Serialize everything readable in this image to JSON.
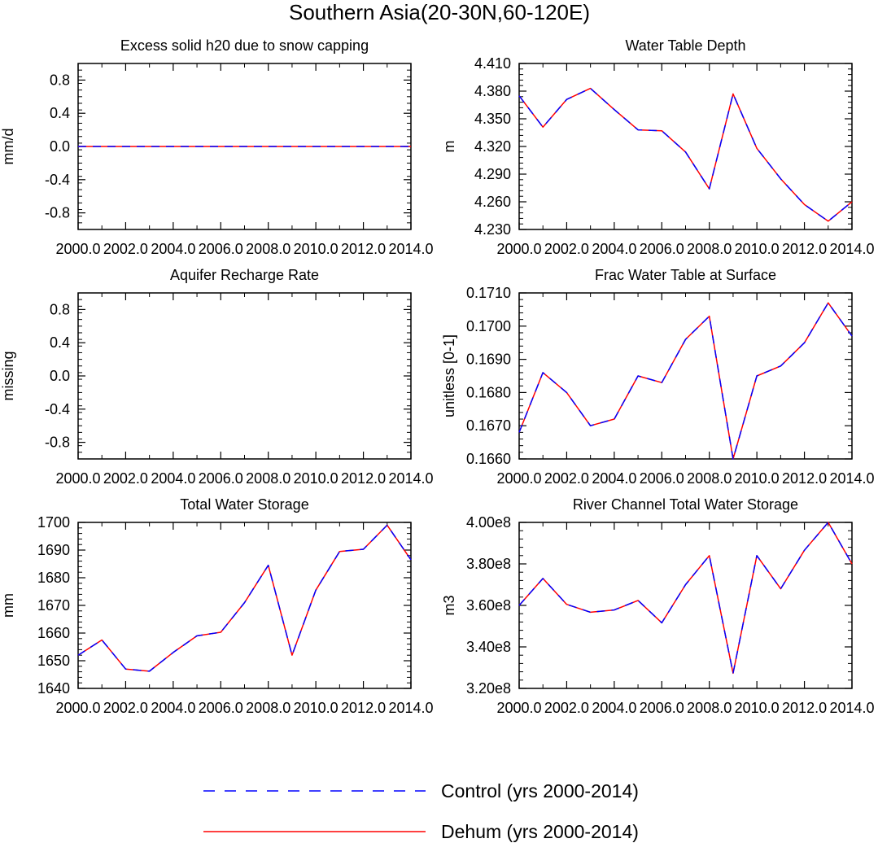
{
  "figure": {
    "title": "Southern Asia(20-30N,60-120E)"
  },
  "legend": {
    "placement": "bottom-center",
    "entries": [
      {
        "label": "Control (yrs 2000-2014)",
        "color": "#0000ff",
        "style": "dashed"
      },
      {
        "label": "Dehum (yrs 2000-2014)",
        "color": "#ff0000",
        "style": "solid"
      }
    ]
  },
  "chart_data": [
    {
      "type": "line",
      "title": "Excess solid h20 due to snow capping",
      "ylabel": "mm/d",
      "xlim": [
        2000,
        2014
      ],
      "ylim": [
        -1,
        1
      ],
      "xticks": [
        "2000.0",
        "2002.0",
        "2004.0",
        "2006.0",
        "2008.0",
        "2010.0",
        "2012.0",
        "2014.0"
      ],
      "yticks": [
        "-0.8",
        "-0.4",
        "0.0",
        "0.4",
        "0.8"
      ],
      "x": [
        2000,
        2001,
        2002,
        2003,
        2004,
        2005,
        2006,
        2007,
        2008,
        2009,
        2010,
        2011,
        2012,
        2013,
        2014
      ],
      "series": [
        {
          "name": "Control (yrs 2000-2014)",
          "color": "#0000ff",
          "style": "dashed",
          "values": [
            0,
            0,
            0,
            0,
            0,
            0,
            0,
            0,
            0,
            0,
            0,
            0,
            0,
            0,
            0
          ]
        },
        {
          "name": "Dehum (yrs 2000-2014)",
          "color": "#ff0000",
          "style": "solid",
          "values": [
            0,
            0,
            0,
            0,
            0,
            0,
            0,
            0,
            0,
            0,
            0,
            0,
            0,
            0,
            0
          ]
        }
      ]
    },
    {
      "type": "line",
      "title": "Water Table Depth",
      "ylabel": "m",
      "xlim": [
        2000,
        2014
      ],
      "ylim": [
        4.23,
        4.41
      ],
      "xticks": [
        "2000.0",
        "2002.0",
        "2004.0",
        "2006.0",
        "2008.0",
        "2010.0",
        "2012.0",
        "2014.0"
      ],
      "yticks": [
        "4.230",
        "4.260",
        "4.290",
        "4.320",
        "4.350",
        "4.380",
        "4.410"
      ],
      "x": [
        2000,
        2001,
        2002,
        2003,
        2004,
        2005,
        2006,
        2007,
        2008,
        2009,
        2010,
        2011,
        2012,
        2013,
        2014
      ],
      "series": [
        {
          "name": "Control (yrs 2000-2014)",
          "color": "#0000ff",
          "style": "dashed",
          "values": [
            4.375,
            4.341,
            4.371,
            4.383,
            4.36,
            4.338,
            4.337,
            4.314,
            4.274,
            4.377,
            4.318,
            4.285,
            4.257,
            4.239,
            4.26
          ]
        },
        {
          "name": "Dehum (yrs 2000-2014)",
          "color": "#ff0000",
          "style": "solid",
          "values": [
            4.375,
            4.341,
            4.371,
            4.383,
            4.36,
            4.338,
            4.337,
            4.314,
            4.274,
            4.377,
            4.318,
            4.285,
            4.257,
            4.239,
            4.26
          ]
        }
      ]
    },
    {
      "type": "line",
      "title": "Aquifer Recharge Rate",
      "ylabel": "missing",
      "xlim": [
        2000,
        2014
      ],
      "ylim": [
        -1,
        1
      ],
      "xticks": [
        "2000.0",
        "2002.0",
        "2004.0",
        "2006.0",
        "2008.0",
        "2010.0",
        "2012.0",
        "2014.0"
      ],
      "yticks": [
        "-0.8",
        "-0.4",
        "0.0",
        "0.4",
        "0.8"
      ],
      "x": [],
      "series": []
    },
    {
      "type": "line",
      "title": "Frac Water Table at Surface",
      "ylabel": "unitless [0-1]",
      "xlim": [
        2000,
        2014
      ],
      "ylim": [
        0.166,
        0.171
      ],
      "xticks": [
        "2000.0",
        "2002.0",
        "2004.0",
        "2006.0",
        "2008.0",
        "2010.0",
        "2012.0",
        "2014.0"
      ],
      "yticks": [
        "0.1660",
        "0.1670",
        "0.1680",
        "0.1690",
        "0.1700",
        "0.1710"
      ],
      "x": [
        2000,
        2001,
        2002,
        2003,
        2004,
        2005,
        2006,
        2007,
        2008,
        2009,
        2010,
        2011,
        2012,
        2013,
        2014
      ],
      "series": [
        {
          "name": "Control (yrs 2000-2014)",
          "color": "#0000ff",
          "style": "dashed",
          "values": [
            0.1668,
            0.1686,
            0.168,
            0.167,
            0.1672,
            0.1685,
            0.1683,
            0.1696,
            0.1703,
            0.166,
            0.1685,
            0.1688,
            0.1695,
            0.1707,
            0.1697
          ]
        },
        {
          "name": "Dehum (yrs 2000-2014)",
          "color": "#ff0000",
          "style": "solid",
          "values": [
            0.1668,
            0.1686,
            0.168,
            0.167,
            0.1672,
            0.1685,
            0.1683,
            0.1696,
            0.1703,
            0.166,
            0.1685,
            0.1688,
            0.1695,
            0.1707,
            0.1697
          ]
        }
      ]
    },
    {
      "type": "line",
      "title": "Total Water Storage",
      "ylabel": "mm",
      "xlim": [
        2000,
        2014
      ],
      "ylim": [
        1640,
        1700
      ],
      "xticks": [
        "2000.0",
        "2002.0",
        "2004.0",
        "2006.0",
        "2008.0",
        "2010.0",
        "2012.0",
        "2014.0"
      ],
      "yticks": [
        "1640",
        "1650",
        "1660",
        "1670",
        "1680",
        "1690",
        "1700"
      ],
      "x": [
        2000,
        2001,
        2002,
        2003,
        2004,
        2005,
        2006,
        2007,
        2008,
        2009,
        2010,
        2011,
        2012,
        2013,
        2014
      ],
      "series": [
        {
          "name": "Control (yrs 2000-2014)",
          "color": "#0000ff",
          "style": "dashed",
          "values": [
            1652,
            1657.5,
            1647,
            1646.2,
            1653,
            1659,
            1660.3,
            1671,
            1684.5,
            1652,
            1675.5,
            1689.5,
            1690.3,
            1699,
            1686.5
          ]
        },
        {
          "name": "Dehum (yrs 2000-2014)",
          "color": "#ff0000",
          "style": "solid",
          "values": [
            1652,
            1657.5,
            1647,
            1646.2,
            1653,
            1659,
            1660.3,
            1671,
            1684.5,
            1652,
            1675.5,
            1689.5,
            1690.3,
            1699,
            1686.5
          ]
        }
      ]
    },
    {
      "type": "line",
      "title": "River Channel Total Water Storage",
      "ylabel": "m3",
      "xlim": [
        2000,
        2014
      ],
      "ylim": [
        320000000,
        400000000
      ],
      "xticks": [
        "2000.0",
        "2002.0",
        "2004.0",
        "2006.0",
        "2008.0",
        "2010.0",
        "2012.0",
        "2014.0"
      ],
      "yticks": [
        "3.20e8",
        "3.40e8",
        "3.60e8",
        "3.80e8",
        "4.00e8"
      ],
      "x": [
        2000,
        2001,
        2002,
        2003,
        2004,
        2005,
        2006,
        2007,
        2008,
        2009,
        2010,
        2011,
        2012,
        2013,
        2014
      ],
      "series": [
        {
          "name": "Control (yrs 2000-2014)",
          "color": "#0000ff",
          "style": "dashed",
          "values": [
            360000000,
            373000000,
            360500000,
            356700000,
            357800000,
            362400000,
            351600000,
            370000000,
            384000000,
            327300000,
            384000000,
            368000000,
            386600000,
            400000000,
            380000000
          ]
        },
        {
          "name": "Dehum (yrs 2000-2014)",
          "color": "#ff0000",
          "style": "solid",
          "values": [
            360000000,
            373000000,
            360500000,
            356700000,
            357800000,
            362400000,
            351600000,
            370000000,
            384000000,
            327300000,
            384000000,
            368000000,
            386600000,
            400000000,
            380000000
          ]
        }
      ]
    }
  ]
}
